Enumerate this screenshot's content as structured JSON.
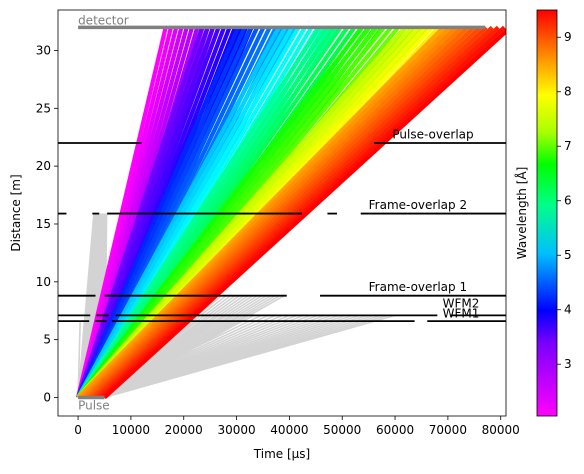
{
  "chart_data": {
    "type": "line",
    "xlabel": "Time [µs]",
    "ylabel": "Distance [m]",
    "xlim": [
      -3800,
      81000
    ],
    "ylim": [
      -1.6,
      33.5
    ],
    "xticks": [
      0,
      10000,
      20000,
      30000,
      40000,
      50000,
      60000,
      70000,
      80000
    ],
    "yticks": [
      0,
      5,
      10,
      15,
      20,
      25,
      30
    ],
    "grid": false,
    "colorbar": {
      "label": "Wavelength [Å]",
      "range": [
        2.05,
        9.5
      ],
      "ticks": [
        3,
        4,
        5,
        6,
        7,
        8,
        9
      ],
      "colormap": "gist_rainbow_r"
    },
    "source": {
      "label": "Pulse",
      "distance": 0,
      "t_start": 0,
      "t_end": 5000,
      "color": "#808080"
    },
    "detector": {
      "label": "detector",
      "distance": 32,
      "t_start": 0,
      "t_end": 77000,
      "color": "#808080"
    },
    "choppers": [
      {
        "label": "WFM1",
        "distance": 6.6,
        "label_t": 69000,
        "label_d": 6.9,
        "closed": [
          [
            -3800,
            2100
          ],
          [
            3300,
            5400
          ],
          [
            6400,
            63700
          ],
          [
            66100,
            81000
          ]
        ]
      },
      {
        "label": "WFM2",
        "distance": 7.1,
        "label_t": 69000,
        "label_d": 7.8,
        "closed": [
          [
            -3800,
            2300
          ],
          [
            3500,
            5800
          ],
          [
            7100,
            68000
          ],
          [
            70500,
            81000
          ]
        ]
      },
      {
        "label": "Frame-overlap 1",
        "distance": 8.8,
        "label_t": 55000,
        "label_d": 9.2,
        "closed": [
          [
            -3800,
            3300
          ],
          [
            5000,
            39500
          ],
          [
            45800,
            81000
          ]
        ]
      },
      {
        "label": "Frame-overlap 2",
        "distance": 15.9,
        "label_t": 55000,
        "label_d": 16.3,
        "closed": [
          [
            -3800,
            -2200
          ],
          [
            2700,
            4000
          ],
          [
            5500,
            42400
          ],
          [
            47200,
            49000
          ],
          [
            53500,
            81000
          ]
        ]
      },
      {
        "label": "Pulse-overlap",
        "distance": 22.0,
        "label_t": 59500,
        "label_d": 22.4,
        "closed": [
          [
            -3800,
            12000
          ],
          [
            56000,
            81000
          ]
        ]
      }
    ],
    "ray_groups": [
      {
        "name": "",
        "start": [
          0,
          2900
        ],
        "wavelength": [
          2.05,
          2.8
        ],
        "n": 10
      },
      {
        "name": "",
        "start": [
          0,
          3300
        ],
        "wavelength": [
          2.9,
          3.65
        ],
        "n": 10
      },
      {
        "name": "",
        "start": [
          0,
          3800
        ],
        "wavelength": [
          3.75,
          4.6
        ],
        "n": 10
      },
      {
        "name": "",
        "start": [
          0,
          4200
        ],
        "wavelength": [
          4.7,
          5.55
        ],
        "n": 10
      },
      {
        "name": "",
        "start": [
          0,
          4600
        ],
        "wavelength": [
          5.65,
          6.55
        ],
        "n": 10
      },
      {
        "name": "",
        "start": [
          0,
          5000
        ],
        "wavelength": [
          6.65,
          7.55
        ],
        "n": 10
      },
      {
        "name": "",
        "start": [
          0,
          5000
        ],
        "wavelength": [
          7.65,
          8.45
        ],
        "n": 10
      },
      {
        "name": "",
        "start": [
          0,
          5000
        ],
        "wavelength": [
          8.55,
          9.5
        ],
        "n": 12
      }
    ],
    "blocked_rays": [
      {
        "start": [
          0,
          5000
        ],
        "stop_distance": 15.9,
        "stop_t": [
          3000,
          5400
        ]
      },
      {
        "start": [
          0,
          5000
        ],
        "stop_distance": 8.8,
        "stop_t": [
          6000,
          39000
        ]
      },
      {
        "start": [
          0,
          5000
        ],
        "stop_distance": 6.6,
        "stop_t": [
          400,
          31000
        ]
      },
      {
        "start": [
          0,
          5000
        ],
        "stop_distance": 7.1,
        "stop_t": [
          8000,
          60000
        ]
      }
    ]
  }
}
